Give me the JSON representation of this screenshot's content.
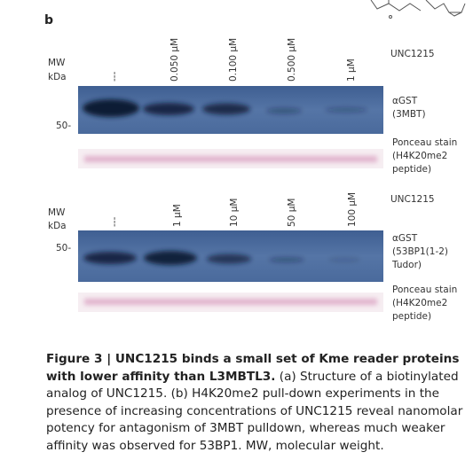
{
  "panel_label": "b",
  "panels": [
    {
      "mw_label": "MW",
      "unit_label": "kDa",
      "marker": "50-",
      "compound": "UNC1215",
      "lanes": [
        "---",
        "0.050 µM",
        "0.100 µM",
        "0.500 µM",
        "1 µM"
      ],
      "blot_label": [
        "αGST",
        "(3MBT)"
      ],
      "stain_label": [
        "Ponceau stain",
        "(H4K20me2",
        "peptide)"
      ]
    },
    {
      "mw_label": "MW",
      "unit_label": "kDa",
      "marker": "50-",
      "compound": "UNC1215",
      "lanes": [
        "---",
        "1 µM",
        "10 µM",
        "50 µM",
        "100 µM"
      ],
      "blot_label": [
        "αGST",
        "(53BP1(1-2)",
        "Tudor)"
      ],
      "stain_label": [
        "Ponceau stain",
        "(H4K20me2",
        "peptide)"
      ]
    }
  ],
  "caption": {
    "title": "Figure 3 | UNC1215 binds a small set of Kme reader proteins with lower affinity than L3MBTL3.",
    "text": "(a) Structure of a biotinylated analog of UNC1215. (b) H4K20me2 pull-down experiments in the presence of increasing concentrations of UNC1215 reveal nanomolar potency for antagonism of 3MBT pulldown, whereas much weaker affinity was observed for 53BP1. MW, molecular weight."
  }
}
